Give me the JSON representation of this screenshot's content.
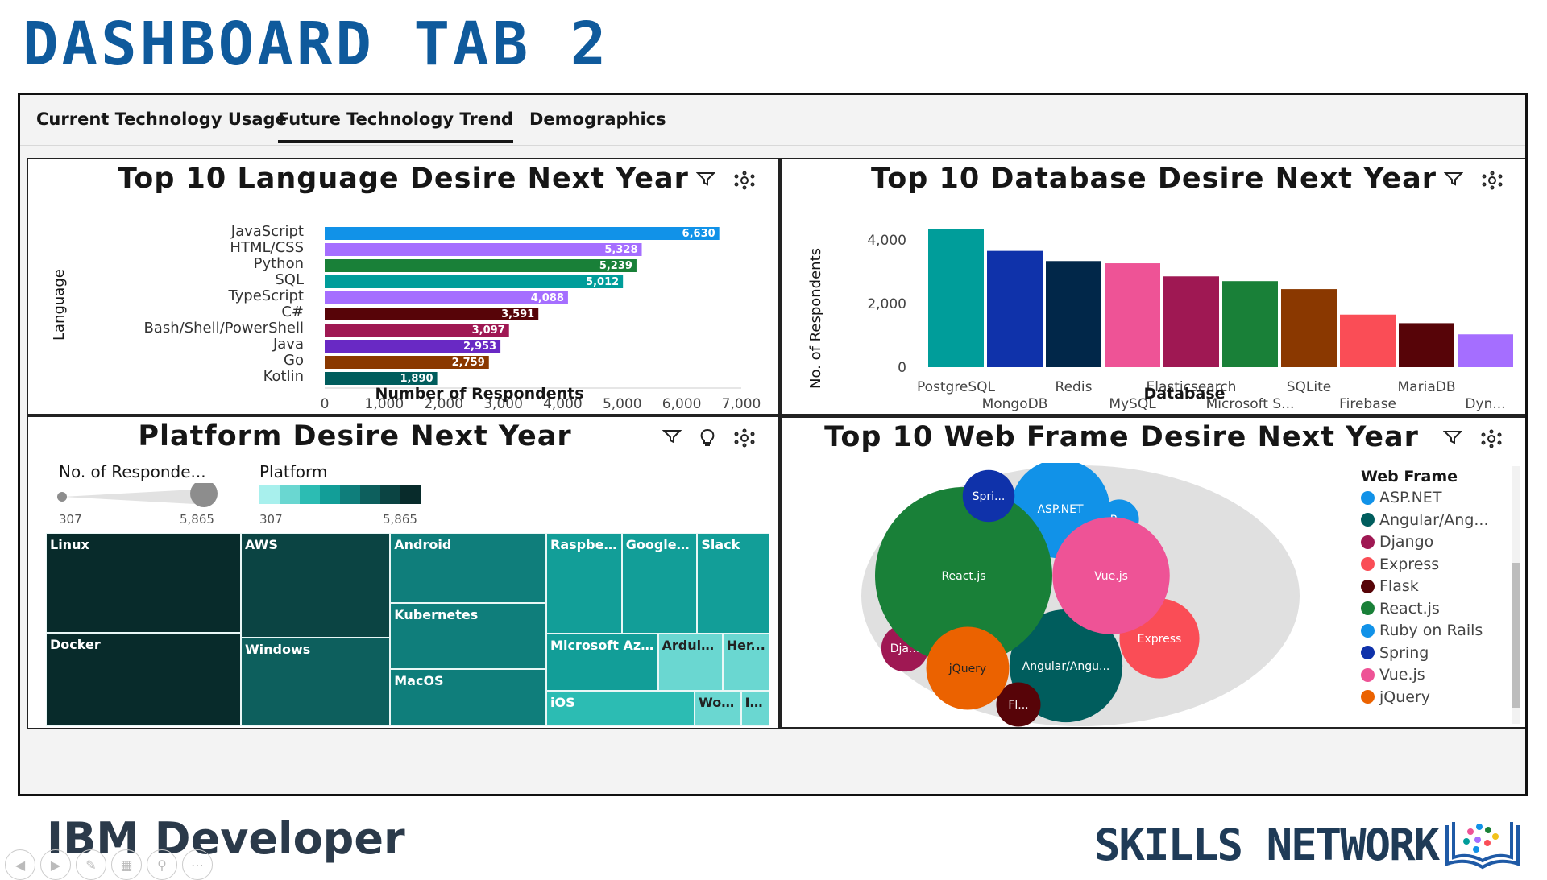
{
  "slide_title": "DASHBOARD  TAB  2",
  "tabs": [
    {
      "label": "Current Technology Usage"
    },
    {
      "label": "Future Technology Trend"
    },
    {
      "label": "Demographics"
    }
  ],
  "panels": {
    "language": {
      "title": "Top 10 Language Desire Next Year",
      "ylabel": "Language",
      "xlabel": "Number of Respondents"
    },
    "database": {
      "title": "Top 10 Database Desire Next Year",
      "ylabel": "No. of Respondents",
      "xlabel": "Database"
    },
    "platform": {
      "title": "Platform Desire Next Year",
      "size_legend_title": "No. of Responde...",
      "color_legend_title": "Platform",
      "size_min": "307",
      "size_max": "5,865",
      "color_min": "307",
      "color_max": "5,865",
      "color_ramp": [
        "#a8f0ed",
        "#6ad7d1",
        "#2cbcb3",
        "#129e98",
        "#0f7e7b",
        "#0d5f5d",
        "#0b4443",
        "#082b2b"
      ]
    },
    "webframe": {
      "title": "Top 10 Web Frame Desire Next Year",
      "legend_title": "Web Frame"
    }
  },
  "chart_data": [
    {
      "type": "bar",
      "orientation": "horizontal",
      "title": "Top 10 Language Desire Next Year",
      "xlabel": "Number of Respondents",
      "ylabel": "Language",
      "xlim": [
        0,
        7000
      ],
      "xticks": [
        "0",
        "1,000",
        "2,000",
        "3,000",
        "4,000",
        "5,000",
        "6,000",
        "7,000"
      ],
      "categories": [
        "JavaScript",
        "HTML/CSS",
        "Python",
        "SQL",
        "TypeScript",
        "C#",
        "Bash/Shell/PowerShell",
        "Java",
        "Go",
        "Kotlin"
      ],
      "values": [
        6630,
        5328,
        5239,
        5012,
        4088,
        3591,
        3097,
        2953,
        2759,
        1890
      ],
      "value_labels": [
        "6,630",
        "5,328",
        "5,239",
        "5,012",
        "4,088",
        "3,591",
        "3,097",
        "2,953",
        "2,759",
        "1,890"
      ],
      "colors": [
        "#1192e8",
        "#a56eff",
        "#198038",
        "#009d9a",
        "#a56eff",
        "#570408",
        "#9f1853",
        "#6929c4",
        "#8a3800",
        "#005d5d"
      ]
    },
    {
      "type": "bar",
      "title": "Top 10 Database Desire Next Year",
      "xlabel": "Database",
      "ylabel": "No. of Respondents",
      "ylim": [
        0,
        4500
      ],
      "yticks": [
        "0",
        "2,000",
        "4,000"
      ],
      "categories": [
        "PostgreSQL",
        "MongoDB",
        "Redis",
        "MySQL",
        "Elasticsearch",
        "Microsoft S...",
        "SQLite",
        "Firebase",
        "MariaDB",
        "Dyn..."
      ],
      "values": [
        4330,
        3650,
        3330,
        3260,
        2850,
        2700,
        2450,
        1650,
        1380,
        1030
      ],
      "colors": [
        "#009d9a",
        "#0f32aa",
        "#012749",
        "#ee5396",
        "#9f1853",
        "#198038",
        "#8a3800",
        "#fa4d56",
        "#570408",
        "#a56eff"
      ]
    },
    {
      "type": "treemap",
      "title": "Platform Desire Next Year",
      "items": [
        {
          "label": "Linux",
          "value": 5865
        },
        {
          "label": "Docker",
          "value": 5500
        },
        {
          "label": "AWS",
          "value": 4700
        },
        {
          "label": "Windows",
          "value": 4000
        },
        {
          "label": "Android",
          "value": 3300
        },
        {
          "label": "Kubernetes",
          "value": 3100
        },
        {
          "label": "MacOS",
          "value": 2700
        },
        {
          "label": "Raspberr...",
          "value": 2300
        },
        {
          "label": "Google ...",
          "value": 2300
        },
        {
          "label": "Slack",
          "value": 2200
        },
        {
          "label": "Microsoft Azure",
          "value": 1900
        },
        {
          "label": "iOS",
          "value": 1600
        },
        {
          "label": "Arduino",
          "value": 1100
        },
        {
          "label": "Her...",
          "value": 800
        },
        {
          "label": "Word...",
          "value": 500
        },
        {
          "label": "IBM ...",
          "value": 307
        }
      ]
    },
    {
      "type": "bubble",
      "title": "Top 10 Web Frame Desire Next Year",
      "legend_title": "Web Frame",
      "series": [
        {
          "name": "ASP.NET",
          "label": "ASP.NET",
          "color": "#1192e8",
          "value": 2000
        },
        {
          "name": "Angular/Ang...",
          "label": "Angular/Angu...",
          "color": "#005d5d",
          "value": 2600
        },
        {
          "name": "Django",
          "label": "Dja...",
          "color": "#9f1853",
          "value": 450
        },
        {
          "name": "Express",
          "label": "Express",
          "color": "#fa4d56",
          "value": 1300
        },
        {
          "name": "Flask",
          "label": "Fl...",
          "color": "#570408",
          "value": 400
        },
        {
          "name": "React.js",
          "label": "React.js",
          "color": "#198038",
          "value": 6400
        },
        {
          "name": "Ruby on Rails",
          "label": "R...",
          "color": "#1192e8",
          "value": 320
        },
        {
          "name": "Spring",
          "label": "Spri...",
          "color": "#0f32aa",
          "value": 550
        },
        {
          "name": "Vue.js",
          "label": "Vue.js",
          "color": "#ee5396",
          "value": 2800
        },
        {
          "name": "jQuery",
          "label": "jQuery",
          "color": "#eb6200",
          "value": 1400
        }
      ]
    }
  ],
  "footer": {
    "ibm": "IBM Developer",
    "skills": "SKILLS NETWORK"
  }
}
